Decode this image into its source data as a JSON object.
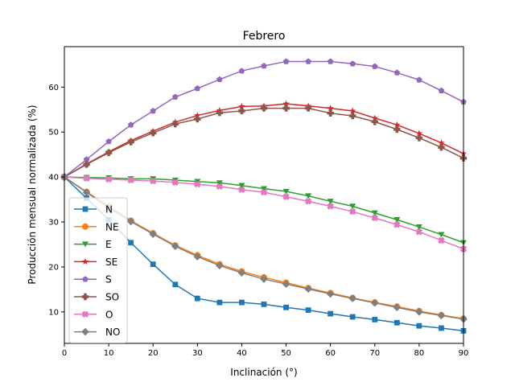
{
  "chart_data": {
    "type": "line",
    "title": "Febrero",
    "xlabel": "Inclinación (°)",
    "ylabel": "Producción mensual normalizada (%)",
    "xlim": [
      0,
      90
    ],
    "ylim": [
      3,
      69
    ],
    "xticks": [
      0,
      10,
      20,
      30,
      40,
      50,
      60,
      70,
      80,
      90
    ],
    "yticks": [
      10,
      20,
      30,
      40,
      50,
      60
    ],
    "grid": false,
    "legend_position": "lower-left",
    "x": [
      0,
      5,
      10,
      15,
      20,
      25,
      30,
      35,
      40,
      45,
      50,
      55,
      60,
      65,
      70,
      75,
      80,
      85,
      90
    ],
    "series": [
      {
        "name": "N",
        "color": "#1f77b4",
        "marker": "square",
        "values": [
          40.0,
          35.3,
          30.5,
          25.4,
          20.6,
          16.1,
          13.0,
          12.1,
          12.1,
          11.7,
          11.0,
          10.4,
          9.6,
          8.9,
          8.3,
          7.6,
          6.9,
          6.4,
          5.8
        ]
      },
      {
        "name": "NE",
        "color": "#ff7f0e",
        "marker": "circle",
        "values": [
          40.0,
          36.7,
          33.5,
          30.3,
          27.5,
          24.8,
          22.6,
          20.6,
          19.0,
          17.7,
          16.5,
          15.3,
          14.2,
          13.1,
          12.1,
          11.2,
          10.2,
          9.3,
          8.5
        ]
      },
      {
        "name": "E",
        "color": "#2ca02c",
        "marker": "triangle-down",
        "values": [
          40.0,
          39.9,
          39.8,
          39.6,
          39.6,
          39.3,
          39.0,
          38.7,
          38.1,
          37.4,
          36.8,
          35.8,
          34.6,
          33.5,
          32.0,
          30.5,
          28.9,
          27.2,
          25.4
        ]
      },
      {
        "name": "SE",
        "color": "#d62728",
        "marker": "star",
        "values": [
          40.0,
          42.9,
          45.6,
          48.1,
          50.2,
          52.2,
          53.7,
          54.8,
          55.7,
          55.8,
          56.3,
          55.8,
          55.3,
          54.7,
          53.1,
          51.6,
          49.7,
          47.6,
          45.2
        ]
      },
      {
        "name": "S",
        "color": "#9467bd",
        "marker": "pentagon",
        "values": [
          40.0,
          43.9,
          47.9,
          51.6,
          54.7,
          57.8,
          59.7,
          61.7,
          63.6,
          64.7,
          65.7,
          65.7,
          65.7,
          65.2,
          64.6,
          63.2,
          61.6,
          59.2,
          56.7
        ]
      },
      {
        "name": "SO",
        "color": "#8c564b",
        "marker": "plus",
        "values": [
          40.0,
          42.8,
          45.4,
          47.8,
          49.8,
          51.8,
          52.9,
          54.3,
          54.7,
          55.3,
          55.3,
          55.3,
          54.2,
          53.6,
          52.3,
          50.6,
          48.7,
          46.6,
          44.2
        ]
      },
      {
        "name": "O",
        "color": "#e377c2",
        "marker": "x",
        "values": [
          40.0,
          39.7,
          39.5,
          39.3,
          39.1,
          38.8,
          38.4,
          37.9,
          37.2,
          36.6,
          35.6,
          34.6,
          33.5,
          32.3,
          30.9,
          29.4,
          27.8,
          25.9,
          24.0
        ]
      },
      {
        "name": "NO",
        "color": "#7f7f7f",
        "marker": "diamond",
        "values": [
          40.0,
          36.6,
          33.2,
          30.1,
          27.3,
          24.6,
          22.3,
          20.3,
          18.7,
          17.3,
          16.2,
          15.1,
          14.0,
          13.0,
          12.0,
          11.0,
          10.0,
          9.2,
          8.4
        ]
      }
    ]
  }
}
